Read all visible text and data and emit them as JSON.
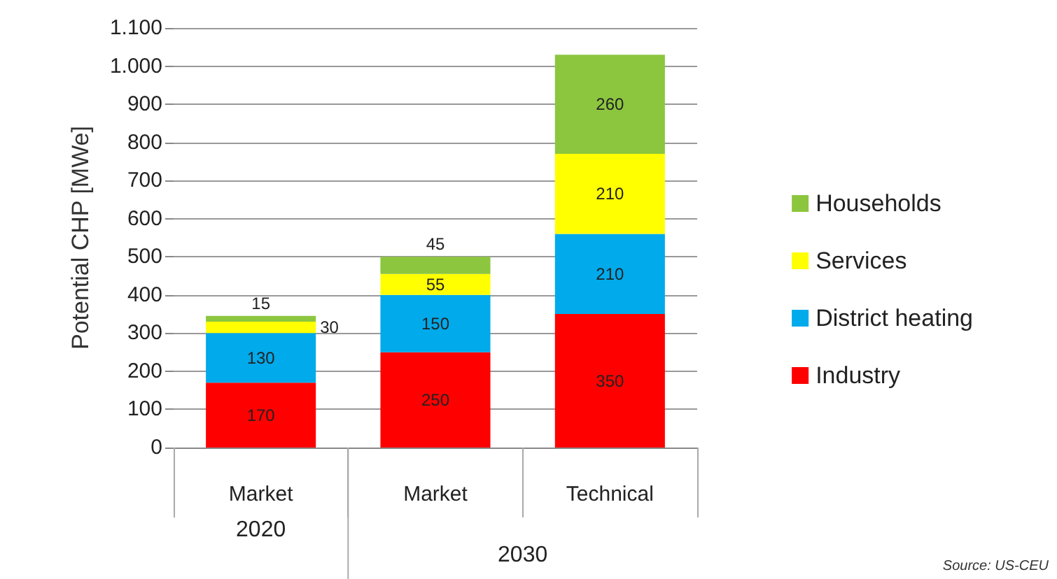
{
  "chart_data": {
    "type": "bar",
    "stacked": true,
    "ylabel": "Potential CHP [MWe]",
    "categories": [
      "Market",
      "Market",
      "Technical"
    ],
    "series": [
      {
        "name": "Industry",
        "color": "#ff0000",
        "values": [
          170,
          250,
          350
        ]
      },
      {
        "name": "District heating",
        "color": "#00aaeb",
        "values": [
          130,
          150,
          210
        ]
      },
      {
        "name": "Services",
        "color": "#ffff00",
        "values": [
          30,
          55,
          210
        ]
      },
      {
        "name": "Households",
        "color": "#8cc63f",
        "values": [
          15,
          45,
          260
        ]
      }
    ],
    "ylim": [
      0,
      1100
    ],
    "yticks": [
      0,
      100,
      200,
      300,
      400,
      500,
      600,
      700,
      800,
      900,
      {
        "value": 1000,
        "label": "1.000"
      },
      {
        "value": 1100,
        "label": "1.100"
      }
    ],
    "grid": "y",
    "legend": "right",
    "data_labels": true,
    "annotations": [
      "2020",
      "2030",
      "Source: US-CEU"
    ]
  }
}
